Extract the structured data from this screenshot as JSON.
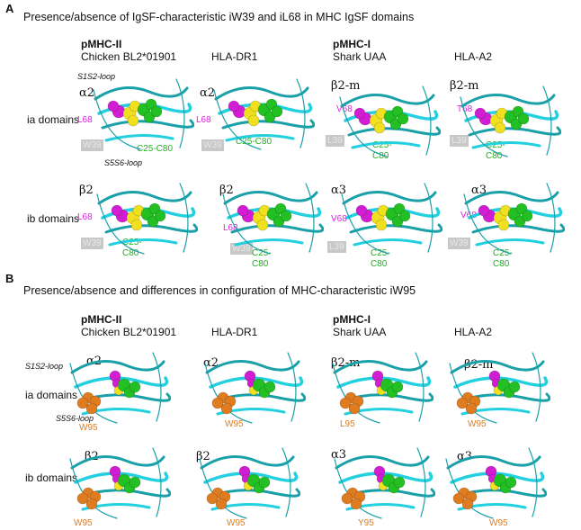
{
  "panelA": {
    "letter": "A",
    "title": "Presence/absence of IgSF-characteristic iW39 and iL68 in MHC IgSF domains",
    "class2_label": "pMHC-II",
    "class1_label": "pMHC-I",
    "columns": [
      "Chicken BL2*01901",
      "HLA-DR1",
      "Shark UAA",
      "HLA-A2"
    ],
    "row_labels": [
      "ia domains",
      "ib domains"
    ],
    "ia_domain_names": [
      "α2",
      "α2",
      "β2-m",
      "β2-m"
    ],
    "ib_domain_names": [
      "β2",
      "β2",
      "α3",
      "α3"
    ],
    "loop_top": "S1S2-loop",
    "loop_bottom": "S5S6-loop",
    "ia_res68": [
      "L68",
      "L68",
      "V68",
      "T68"
    ],
    "ia_res39": [
      "W39",
      "W39",
      "L39",
      "L39"
    ],
    "ib_res68": [
      "L68",
      "L68",
      "V68",
      "V68"
    ],
    "ib_res39": [
      "W39",
      "W39",
      "L39",
      "W39"
    ],
    "cys_a": "C25-",
    "cys_b": "C80",
    "cys_inline": "C25-C80"
  },
  "panelB": {
    "letter": "B",
    "title": "Presence/absence and differences in configuration of MHC-characteristic iW95",
    "class2_label": "pMHC-II",
    "class1_label": "pMHC-I",
    "columns": [
      "Chicken BL2*01901",
      "HLA-DR1",
      "Shark UAA",
      "HLA-A2"
    ],
    "row_labels": [
      "ia domains",
      "ib domains"
    ],
    "ia_domain_names": [
      "α2",
      "α2",
      "β2-m",
      "β2-m"
    ],
    "ib_domain_names": [
      "β2",
      "β2",
      "α3",
      "α3"
    ],
    "loop_top": "S1S2-loop",
    "loop_bottom": "S5S6-loop",
    "ia_res95": [
      "W95",
      "W95",
      "L95",
      "W95"
    ],
    "ib_res95": [
      "W95",
      "W95",
      "Y95",
      "W95"
    ]
  },
  "colors": {
    "ribbon": "#1aa0a8",
    "ribbon_light": "#22d0e0",
    "magenta": "#d21ed2",
    "yellow": "#f0e020",
    "green": "#22c022",
    "orange": "#e07c20",
    "tag_gray": "#c8c8c8"
  }
}
